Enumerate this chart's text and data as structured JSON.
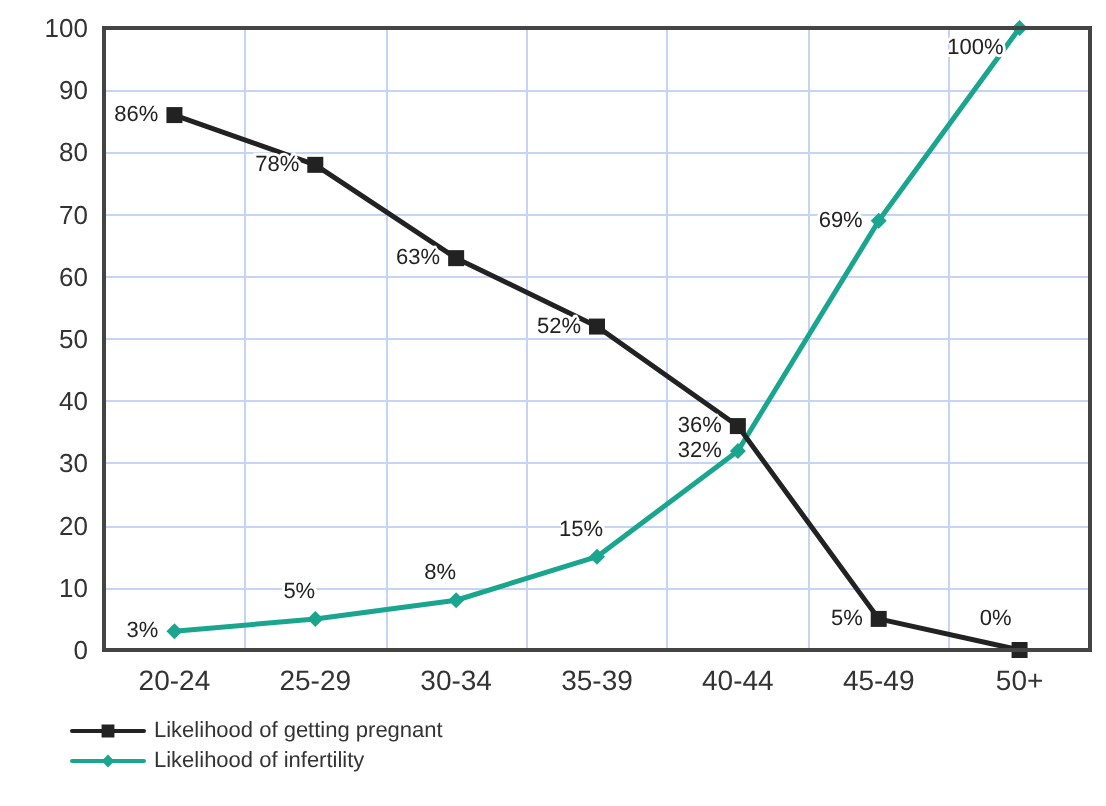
{
  "chart_data": {
    "type": "line",
    "categories": [
      "20-24",
      "25-29",
      "30-34",
      "35-39",
      "40-44",
      "45-49",
      "50+"
    ],
    "series": [
      {
        "name": "Likelihood of getting pregnant",
        "color": "#222222",
        "marker": "square",
        "value_labels": [
          "86%",
          "78%",
          "63%",
          "52%",
          "36%",
          "5%",
          "0%"
        ],
        "values": [
          86,
          78,
          63,
          52,
          36,
          5,
          0
        ]
      },
      {
        "name": "Likelihood of infertility",
        "color": "#1aa58f",
        "marker": "diamond",
        "value_labels": [
          "3%",
          "5%",
          "8%",
          "15%",
          "32%",
          "69%",
          "100%"
        ],
        "values": [
          3,
          5,
          8,
          15,
          32,
          69,
          100
        ]
      }
    ],
    "ylim": [
      0,
      100
    ],
    "yticks": [
      0,
      10,
      20,
      30,
      40,
      50,
      60,
      70,
      80,
      90,
      100
    ],
    "grid": true,
    "legend": "bottom left",
    "line_style": "solid"
  }
}
